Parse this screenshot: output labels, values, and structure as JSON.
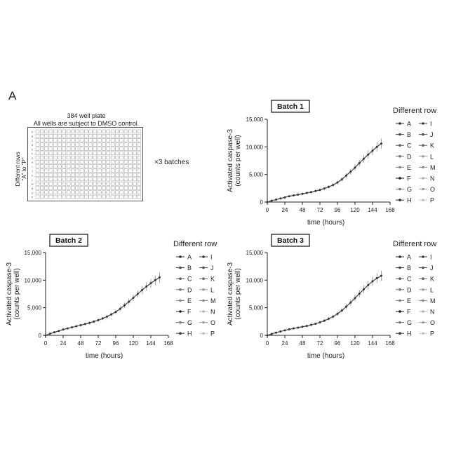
{
  "panel_label": "A",
  "plate": {
    "title_line1": "384 well plate",
    "title_line2": "All wells are subject to DMSO control.",
    "row_axis_label_line1": "Different rows",
    "row_axis_label_line2": "\"A\" to \"P\"",
    "row_letters": [
      "A",
      "B",
      "C",
      "D",
      "E",
      "F",
      "G",
      "H",
      "I",
      "J",
      "K",
      "L",
      "M",
      "N",
      "O",
      "P"
    ],
    "columns": 24,
    "batches_note": "×3 batches"
  },
  "legend": {
    "title": "Different row",
    "rows": [
      "A",
      "B",
      "C",
      "D",
      "E",
      "F",
      "G",
      "H",
      "I",
      "J",
      "K",
      "L",
      "M",
      "N",
      "O",
      "P"
    ],
    "marker_colors": [
      "#2b2b2b",
      "#444444",
      "#5a5a5a",
      "#6e6e6e",
      "#828282",
      "#1a1a1a",
      "#777777",
      "#333333",
      "#3a3a3a",
      "#505050",
      "#666666",
      "#9a9a9a",
      "#8a8a8a",
      "#b0b0b0",
      "#a0a0a0",
      "#c0c0c0"
    ]
  },
  "chart_data": [
    {
      "type": "line",
      "title": "Batch 1",
      "xlabel": "time (hours)",
      "ylabel_line1": "Activated caspase-3",
      "ylabel_line2": "(counts per well)",
      "xlim": [
        0,
        168
      ],
      "ylim": [
        0,
        15000
      ],
      "xticks": [
        0,
        24,
        48,
        72,
        96,
        120,
        144,
        168
      ],
      "yticks": [
        0,
        5000,
        10000,
        15000
      ],
      "ytick_labels": [
        "0",
        "5,000",
        "10,000",
        "15,000"
      ],
      "x": [
        0,
        6,
        12,
        18,
        24,
        30,
        36,
        42,
        48,
        54,
        60,
        66,
        72,
        78,
        84,
        90,
        96,
        102,
        108,
        114,
        120,
        126,
        132,
        138,
        144,
        150,
        156
      ],
      "y": [
        0,
        250,
        450,
        650,
        850,
        1050,
        1200,
        1350,
        1500,
        1650,
        1800,
        2000,
        2200,
        2450,
        2750,
        3100,
        3550,
        4100,
        4800,
        5500,
        6250,
        7050,
        7850,
        8600,
        9300,
        10000,
        10600
      ]
    },
    {
      "type": "line",
      "title": "Batch 2",
      "xlabel": "time (hours)",
      "ylabel_line1": "Activated caspase-3",
      "ylabel_line2": "(counts per well)",
      "xlim": [
        0,
        168
      ],
      "ylim": [
        0,
        15000
      ],
      "xticks": [
        0,
        24,
        48,
        72,
        96,
        120,
        144,
        168
      ],
      "yticks": [
        0,
        5000,
        10000,
        15000
      ],
      "ytick_labels": [
        "0",
        "5,000",
        "10,000",
        "15,000"
      ],
      "x": [
        0,
        6,
        12,
        18,
        24,
        30,
        36,
        42,
        48,
        54,
        60,
        66,
        72,
        78,
        84,
        90,
        96,
        102,
        108,
        114,
        120,
        126,
        132,
        138,
        144,
        150,
        156
      ],
      "y": [
        0,
        300,
        550,
        800,
        1050,
        1250,
        1450,
        1650,
        1850,
        2050,
        2250,
        2500,
        2750,
        3050,
        3400,
        3800,
        4250,
        4800,
        5450,
        6100,
        6800,
        7500,
        8200,
        8850,
        9450,
        10000,
        10500
      ]
    },
    {
      "type": "line",
      "title": "Batch 3",
      "xlabel": "time (hours)",
      "ylabel_line1": "Activated caspase-3",
      "ylabel_line2": "(counts per well)",
      "xlim": [
        0,
        168
      ],
      "ylim": [
        0,
        15000
      ],
      "xticks": [
        0,
        24,
        48,
        72,
        96,
        120,
        144,
        168
      ],
      "yticks": [
        0,
        5000,
        10000,
        15000
      ],
      "ytick_labels": [
        "0",
        "5,000",
        "10,000",
        "15,000"
      ],
      "x": [
        0,
        6,
        12,
        18,
        24,
        30,
        36,
        42,
        48,
        54,
        60,
        66,
        72,
        78,
        84,
        90,
        96,
        102,
        108,
        114,
        120,
        126,
        132,
        138,
        144,
        150,
        156
      ],
      "y": [
        0,
        250,
        500,
        700,
        900,
        1100,
        1250,
        1400,
        1550,
        1700,
        1900,
        2100,
        2350,
        2650,
        3000,
        3400,
        3900,
        4500,
        5200,
        5950,
        6750,
        7550,
        8350,
        9100,
        9800,
        10350,
        10800
      ]
    }
  ]
}
